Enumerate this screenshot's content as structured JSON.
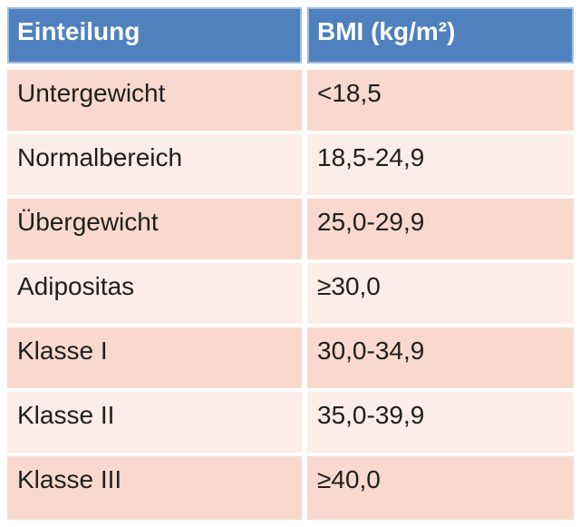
{
  "colors": {
    "page_bg": "#FFFFFF",
    "header_bg": "#4E81BD",
    "header_border": "#9FBCDD",
    "header_text": "#FFFFFF",
    "row_dark": "#F9D9CE",
    "row_light": "#FBEDE7",
    "body_text": "#1F1F1F"
  },
  "table": {
    "columns": [
      "Einteilung",
      "BMI (kg/m²)"
    ],
    "rows": [
      {
        "label": "Untergewicht",
        "bmi": "<18,5"
      },
      {
        "label": "Normalbereich",
        "bmi": "18,5-24,9"
      },
      {
        "label": "Übergewicht",
        "bmi": "25,0-29,9"
      },
      {
        "label": "Adipositas",
        "bmi": "≥30,0"
      },
      {
        "label": "Klasse I",
        "bmi": "30,0-34,9"
      },
      {
        "label": "Klasse II",
        "bmi": "35,0-39,9"
      },
      {
        "label": "Klasse III",
        "bmi": "≥40,0"
      }
    ]
  },
  "chart_data": {
    "type": "table",
    "title": "",
    "columns": [
      "Einteilung",
      "BMI (kg/m²)"
    ],
    "rows": [
      [
        "Untergewicht",
        "<18,5"
      ],
      [
        "Normalbereich",
        "18,5-24,9"
      ],
      [
        "Übergewicht",
        "25,0-29,9"
      ],
      [
        "Adipositas",
        "≥30,0"
      ],
      [
        "Klasse I",
        "30,0-34,9"
      ],
      [
        "Klasse II",
        "35,0-39,9"
      ],
      [
        "Klasse III",
        "≥40,0"
      ]
    ]
  }
}
